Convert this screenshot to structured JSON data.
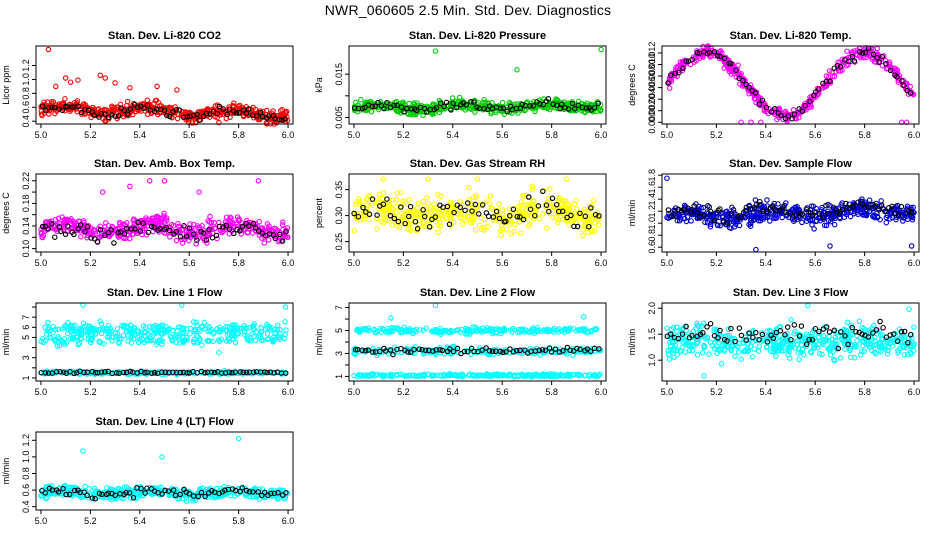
{
  "figure": {
    "title": "NWR_060605  2.5 Min. Std. Dev. Diagnostics"
  },
  "colors": {
    "overlay": "#000000",
    "frame": "#000000"
  },
  "chart_data": [
    {
      "type": "scatter",
      "title": "Stan. Dev. Li-820 CO2",
      "ylabel": "Licor ppm",
      "color": "#ff0000",
      "xlim": [
        4.98,
        6.02
      ],
      "ylim": [
        0.36,
        1.48
      ],
      "xticks": [
        5.0,
        5.2,
        5.4,
        5.6,
        5.8,
        6.0
      ],
      "xtick_labels": [
        "5.0",
        "5.2",
        "5.4",
        "5.6",
        "5.8",
        "6.0"
      ],
      "yticks": [
        0.4,
        0.6,
        0.8,
        1.0,
        1.2
      ],
      "ytick_labels": [
        "0.4",
        "0.6",
        "0.8",
        "1.0",
        "1.2"
      ],
      "series": {
        "base": 0.58,
        "amp": 0.05,
        "noise": 0.08,
        "trend": -0.08,
        "n": 460,
        "n_black": 75,
        "black_offset": -0.02,
        "outliers": [
          [
            5.03,
            1.43
          ],
          [
            5.1,
            1.02
          ],
          [
            5.12,
            0.96
          ],
          [
            5.26,
            1.02
          ],
          [
            5.3,
            0.95
          ],
          [
            5.24,
            1.06
          ],
          [
            5.15,
            0.99
          ],
          [
            5.72,
            0.38
          ],
          [
            5.47,
            0.9
          ],
          [
            5.36,
            0.88
          ],
          [
            5.55,
            0.85
          ],
          [
            5.06,
            0.9
          ]
        ]
      }
    },
    {
      "type": "scatter",
      "title": "Stan. Dev. Li-820 Pressure",
      "ylabel": "kPa",
      "color": "#00cc00",
      "xlim": [
        4.98,
        6.02
      ],
      "ylim": [
        0.0035,
        0.0215
      ],
      "xticks": [
        5.0,
        5.2,
        5.4,
        5.6,
        5.8,
        6.0
      ],
      "xtick_labels": [
        "5.0",
        "5.2",
        "5.4",
        "5.6",
        "5.8",
        "6.0"
      ],
      "yticks": [
        0.005,
        0.01,
        0.015
      ],
      "ytick_labels": [
        "0.005",
        "",
        "0.015"
      ],
      "series": {
        "base": 0.0072,
        "amp": 0.0005,
        "noise": 0.0011,
        "trend": 0.0006,
        "n": 460,
        "n_black": 75,
        "black_offset": 0,
        "outliers": [
          [
            5.33,
            0.0203
          ],
          [
            5.66,
            0.016
          ],
          [
            6.0,
            0.0207
          ]
        ]
      }
    },
    {
      "type": "scatter",
      "title": "Stan. Dev. Li-820 Temp.",
      "ylabel": "degrees C",
      "color": "#ff00ff",
      "xlim": [
        4.98,
        6.02
      ],
      "ylim": [
        -0.0003,
        0.0132
      ],
      "xticks": [
        5.0,
        5.2,
        5.4,
        5.6,
        5.8,
        6.0
      ],
      "xtick_labels": [
        "5.0",
        "5.2",
        "5.4",
        "5.6",
        "5.8",
        "6.0"
      ],
      "yticks": [
        0.0,
        0.002,
        0.004,
        0.006,
        0.008,
        0.01,
        0.012
      ],
      "ytick_labels": [
        "0.000",
        "0.002",
        "0.004",
        "0.006",
        "0.008",
        "0.010",
        "0.012"
      ],
      "series": {
        "wave": true,
        "noise": 0.0009,
        "n": 430,
        "n_black": 70,
        "black_offset": 0,
        "outliers": [
          [
            5.3,
            0.0
          ],
          [
            5.34,
            0.0
          ],
          [
            5.38,
            0.0
          ],
          [
            5.95,
            0.0
          ],
          [
            5.97,
            0.0
          ]
        ]
      }
    },
    {
      "type": "scatter",
      "title": "Stan. Dev. Amb. Box Temp.",
      "ylabel": "degrees C",
      "color": "#ff00ff",
      "xlim": [
        4.98,
        6.02
      ],
      "ylim": [
        0.094,
        0.232
      ],
      "xticks": [
        5.0,
        5.2,
        5.4,
        5.6,
        5.8,
        6.0
      ],
      "xtick_labels": [
        "5.0",
        "5.2",
        "5.4",
        "5.6",
        "5.8",
        "6.0"
      ],
      "yticks": [
        0.1,
        0.12,
        0.14,
        0.16,
        0.18,
        0.2,
        0.22
      ],
      "ytick_labels": [
        "0.10",
        "",
        "0.14",
        "",
        "0.18",
        "",
        "0.22"
      ],
      "series": {
        "base": 0.135,
        "amp": 0.008,
        "noise": 0.014,
        "trend": 0.0,
        "n": 460,
        "n_black": 75,
        "black_offset": -0.005,
        "outliers": [
          [
            5.44,
            0.22
          ],
          [
            5.5,
            0.22
          ],
          [
            5.36,
            0.21
          ],
          [
            5.88,
            0.22
          ],
          [
            5.25,
            0.2
          ],
          [
            5.64,
            0.2
          ]
        ]
      }
    },
    {
      "type": "scatter",
      "title": "Stan. Dev. Gas Stream RH",
      "ylabel": "percent",
      "color": "#ffff00",
      "xlim": [
        4.98,
        6.02
      ],
      "ylim": [
        0.23,
        0.38
      ],
      "xticks": [
        5.0,
        5.2,
        5.4,
        5.6,
        5.8,
        6.0
      ],
      "xtick_labels": [
        "5.0",
        "5.2",
        "5.4",
        "5.6",
        "5.8",
        "6.0"
      ],
      "yticks": [
        0.25,
        0.3,
        0.35
      ],
      "ytick_labels": [
        "0.25",
        "0.30",
        "0.35"
      ],
      "series": {
        "base": 0.305,
        "amp": 0.008,
        "noise": 0.028,
        "trend": 0.0,
        "n": 440,
        "n_black": 70,
        "black_offset": 0,
        "outliers": [
          [
            5.12,
            0.37
          ],
          [
            5.3,
            0.37
          ],
          [
            5.5,
            0.37
          ],
          [
            5.86,
            0.37
          ]
        ]
      }
    },
    {
      "type": "scatter",
      "title": "Stan. Dev. Sample Flow",
      "ylabel": "ml/min",
      "color": "#0000cc",
      "xlim": [
        4.98,
        6.02
      ],
      "ylim": [
        0.52,
        1.82
      ],
      "xticks": [
        5.0,
        5.2,
        5.4,
        5.6,
        5.8,
        6.0
      ],
      "xtick_labels": [
        "5.0",
        "5.2",
        "5.4",
        "5.6",
        "5.8",
        "6.0"
      ],
      "yticks": [
        0.6,
        0.8,
        1.0,
        1.2,
        1.4,
        1.6,
        1.8
      ],
      "ytick_labels": [
        "0.6",
        "0.8",
        "1.0",
        "1.2",
        "1.4",
        "1.6",
        "1.8"
      ],
      "series": {
        "base": 1.1,
        "amp": 0.06,
        "noise": 0.13,
        "trend": 0.12,
        "n": 480,
        "n_black": 75,
        "black_offset": 0.05,
        "outliers": [
          [
            5.0,
            1.75
          ],
          [
            5.99,
            0.62
          ],
          [
            5.36,
            0.56
          ],
          [
            5.66,
            0.62
          ]
        ]
      }
    },
    {
      "type": "scatter",
      "title": "Stan. Dev. Line 1 Flow",
      "ylabel": "ml/min",
      "color": "#00ffff",
      "xlim": [
        4.98,
        6.02
      ],
      "ylim": [
        0.7,
        8.4
      ],
      "xticks": [
        5.0,
        5.2,
        5.4,
        5.6,
        5.8,
        6.0
      ],
      "xtick_labels": [
        "5.0",
        "5.2",
        "5.4",
        "5.6",
        "5.8",
        "6.0"
      ],
      "yticks": [
        1,
        2,
        3,
        4,
        5,
        6,
        7,
        8
      ],
      "ytick_labels": [
        "1",
        "",
        "3",
        "",
        "5",
        "6",
        "7",
        ""
      ],
      "series": {
        "bands": [
          [
            5.8,
            0.55,
            230
          ],
          [
            4.9,
            0.5,
            160
          ],
          [
            1.5,
            0.12,
            240
          ]
        ],
        "black_band": [
          1.55,
          0.1,
          70
        ],
        "noise": 0,
        "outliers": [
          [
            5.17,
            8.2
          ],
          [
            5.57,
            8.2
          ],
          [
            5.99,
            8.0
          ],
          [
            5.72,
            3.5
          ]
        ]
      }
    },
    {
      "type": "scatter",
      "title": "Stan. Dev. Line 2 Flow",
      "ylabel": "ml/min",
      "color": "#00ffff",
      "xlim": [
        4.98,
        6.02
      ],
      "ylim": [
        0.6,
        7.4
      ],
      "xticks": [
        5.0,
        5.2,
        5.4,
        5.6,
        5.8,
        6.0
      ],
      "xtick_labels": [
        "5.0",
        "5.2",
        "5.4",
        "5.6",
        "5.8",
        "6.0"
      ],
      "yticks": [
        1,
        2,
        3,
        4,
        5,
        6,
        7
      ],
      "ytick_labels": [
        "1",
        "",
        "3",
        "",
        "5",
        "",
        "7"
      ],
      "series": {
        "bands": [
          [
            5.0,
            0.22,
            230
          ],
          [
            3.2,
            0.25,
            200
          ],
          [
            1.1,
            0.1,
            240
          ]
        ],
        "black_band": [
          3.25,
          0.22,
          70
        ],
        "noise": 0,
        "outliers": [
          [
            5.33,
            7.2
          ],
          [
            5.15,
            6.1
          ],
          [
            5.93,
            6.2
          ]
        ]
      }
    },
    {
      "type": "scatter",
      "title": "Stan. Dev. Line 3 Flow",
      "ylabel": "ml/min",
      "color": "#00ffff",
      "xlim": [
        4.98,
        6.02
      ],
      "ylim": [
        0.6,
        2.1
      ],
      "xticks": [
        5.0,
        5.2,
        5.4,
        5.6,
        5.8,
        6.0
      ],
      "xtick_labels": [
        "5.0",
        "5.2",
        "5.4",
        "5.6",
        "5.8",
        "6.0"
      ],
      "yticks": [
        1.0,
        1.5,
        2.0
      ],
      "ytick_labels": [
        "1.0",
        "1.5",
        "2.0"
      ],
      "series": {
        "base": 1.35,
        "amp": 0.05,
        "noise": 0.25,
        "trend": 0.0,
        "n": 480,
        "n_black": 70,
        "black_offset": 0.15,
        "outliers": [
          [
            5.57,
            2.05
          ],
          [
            5.98,
            1.98
          ],
          [
            5.15,
            0.7
          ]
        ]
      }
    },
    {
      "type": "scatter",
      "title": "Stan. Dev. Line 4 (LT) Flow",
      "ylabel": "ml/min",
      "color": "#00ffff",
      "xlim": [
        4.98,
        6.02
      ],
      "ylim": [
        0.36,
        1.3
      ],
      "xticks": [
        5.0,
        5.2,
        5.4,
        5.6,
        5.8,
        6.0
      ],
      "xtick_labels": [
        "5.0",
        "5.2",
        "5.4",
        "5.6",
        "5.8",
        "6.0"
      ],
      "yticks": [
        0.4,
        0.6,
        0.8,
        1.0,
        1.2
      ],
      "ytick_labels": [
        "0.4",
        "0.6",
        "0.8",
        "1.0",
        "1.2"
      ],
      "series": {
        "base": 0.57,
        "amp": 0.02,
        "noise": 0.055,
        "trend": 0.0,
        "n": 440,
        "n_black": 70,
        "black_offset": 0.0,
        "outliers": [
          [
            5.17,
            1.07
          ],
          [
            5.49,
            1.0
          ],
          [
            5.8,
            1.22
          ]
        ]
      }
    }
  ]
}
